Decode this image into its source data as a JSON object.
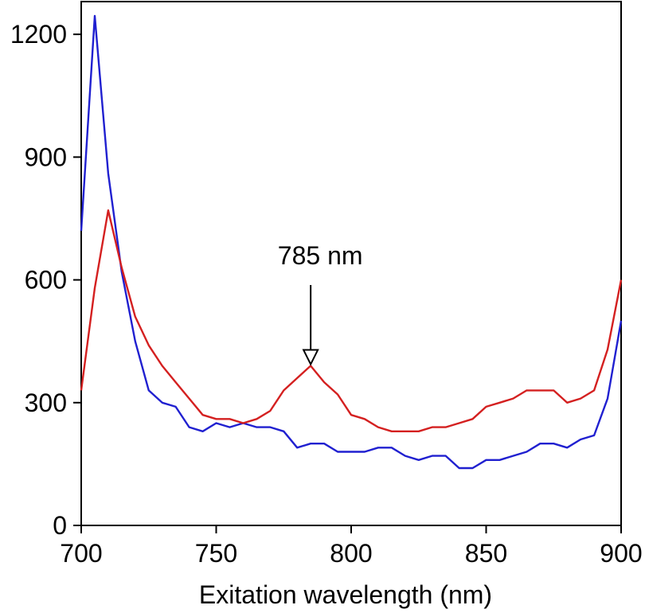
{
  "chart_data": {
    "type": "line",
    "title": "",
    "xlabel": "Exitation  wavelength (nm)",
    "ylabel": "",
    "xlim": [
      700,
      900
    ],
    "ylim": [
      0,
      1280
    ],
    "x_ticks": [
      700,
      750,
      800,
      850,
      900
    ],
    "y_ticks": [
      0,
      300,
      600,
      900,
      1200
    ],
    "grid": false,
    "x": [
      700,
      705,
      710,
      715,
      720,
      725,
      730,
      735,
      740,
      745,
      750,
      755,
      760,
      765,
      770,
      775,
      780,
      785,
      790,
      795,
      800,
      805,
      810,
      815,
      820,
      825,
      830,
      835,
      840,
      845,
      850,
      855,
      860,
      865,
      870,
      875,
      880,
      885,
      890,
      895,
      900
    ],
    "series": [
      {
        "name": "blue",
        "color": "#2020d0",
        "values": [
          720,
          1245,
          860,
          620,
          450,
          330,
          300,
          290,
          240,
          230,
          250,
          240,
          250,
          240,
          240,
          230,
          190,
          200,
          200,
          180,
          180,
          180,
          190,
          190,
          170,
          160,
          170,
          170,
          140,
          140,
          160,
          160,
          170,
          180,
          200,
          200,
          190,
          210,
          220,
          310,
          500
        ]
      },
      {
        "name": "red",
        "color": "#d42020",
        "values": [
          330,
          580,
          770,
          630,
          510,
          440,
          390,
          350,
          310,
          270,
          260,
          260,
          250,
          260,
          280,
          330,
          360,
          390,
          350,
          320,
          270,
          260,
          240,
          230,
          230,
          230,
          240,
          240,
          250,
          260,
          290,
          300,
          310,
          330,
          330,
          330,
          300,
          310,
          330,
          430,
          600
        ]
      }
    ],
    "annotations": [
      {
        "text": "785 nm",
        "x": 785,
        "arrow_tip_y": 390
      }
    ]
  }
}
